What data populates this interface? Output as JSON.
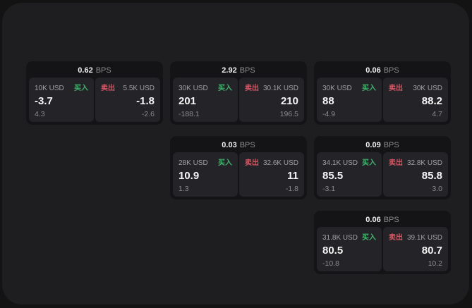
{
  "labels": {
    "buy": "买入",
    "sell": "卖出",
    "bps_unit": "BPS"
  },
  "colors": {
    "outer_bg": "#131313",
    "window_bg": "#1e1e20",
    "card_bg": "#141416",
    "panel_bg": "#242428",
    "buy_green": "#3eb56c",
    "sell_red": "#d15663",
    "value_white": "#f5f5f5",
    "label_gray": "#a2a2a2",
    "sub_gray": "#8b8b8b"
  },
  "cards": [
    {
      "row": 1,
      "col": 1,
      "bps": "0.62",
      "buy": {
        "amount": "10K USD",
        "price": "-3.7",
        "sub": "4.3"
      },
      "sell": {
        "amount": "5.5K USD",
        "price": "-1.8",
        "sub": "-2.6"
      }
    },
    {
      "row": 1,
      "col": 2,
      "bps": "2.92",
      "buy": {
        "amount": "30K USD",
        "price": "201",
        "sub": "-188.1"
      },
      "sell": {
        "amount": "30.1K USD",
        "price": "210",
        "sub": "196.5"
      }
    },
    {
      "row": 1,
      "col": 3,
      "bps": "0.06",
      "buy": {
        "amount": "30K USD",
        "price": "88",
        "sub": "-4.9"
      },
      "sell": {
        "amount": "30K USD",
        "price": "88.2",
        "sub": "4.7"
      }
    },
    {
      "row": 2,
      "col": 2,
      "bps": "0.03",
      "buy": {
        "amount": "28K USD",
        "price": "10.9",
        "sub": "1.3"
      },
      "sell": {
        "amount": "32.6K USD",
        "price": "11",
        "sub": "-1.8"
      }
    },
    {
      "row": 2,
      "col": 3,
      "bps": "0.09",
      "buy": {
        "amount": "34.1K USD",
        "price": "85.5",
        "sub": "-3.1"
      },
      "sell": {
        "amount": "32.8K USD",
        "price": "85.8",
        "sub": "3.0"
      }
    },
    {
      "row": 3,
      "col": 3,
      "bps": "0.06",
      "buy": {
        "amount": "31.8K USD",
        "price": "80.5",
        "sub": "-10.8"
      },
      "sell": {
        "amount": "39.1K USD",
        "price": "80.7",
        "sub": "10.2"
      }
    }
  ]
}
